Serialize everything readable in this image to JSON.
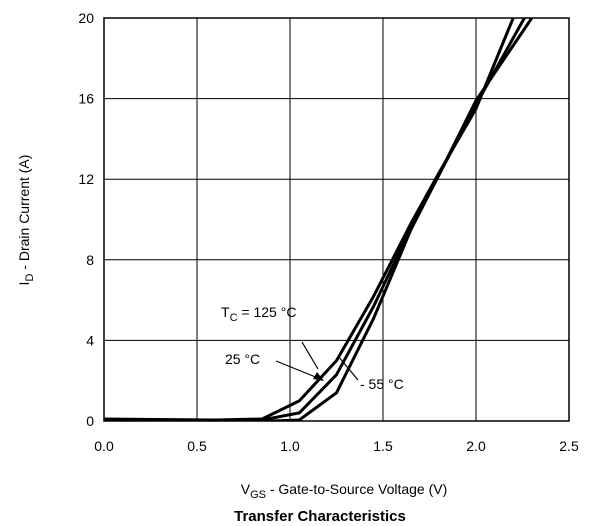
{
  "chart_data": {
    "type": "line",
    "title": "Transfer Characteristics",
    "xlabel": {
      "main": "V",
      "sub": "GS",
      "rest": " - Gate-to-Source Voltage (V)"
    },
    "ylabel": {
      "main": "I",
      "sub": "D",
      "rest": " - Drain Current (A)"
    },
    "xlim": [
      0.0,
      2.5
    ],
    "ylim": [
      0,
      20
    ],
    "xticks": [
      "0.0",
      "0.5",
      "1.0",
      "1.5",
      "2.0",
      "2.5"
    ],
    "yticks": [
      "0",
      "4",
      "8",
      "12",
      "16",
      "20"
    ],
    "grid": true,
    "annotations": [
      {
        "text_main": "T",
        "text_sub": "C",
        "text_rest": " = 125 °C"
      },
      {
        "text_main": "25 °C"
      },
      {
        "text_main": "- 55 °C"
      }
    ],
    "series": [
      {
        "x": [
          0,
          0.6,
          0.85,
          1.05,
          1.25,
          1.45,
          1.65,
          1.8,
          2.0,
          2.2
        ],
        "y": [
          0.1,
          0.05,
          0.1,
          1.0,
          3.0,
          6.2,
          9.8,
          12.3,
          15.5,
          20
        ]
      },
      {
        "x": [
          0,
          0.6,
          0.85,
          1.05,
          1.25,
          1.45,
          1.65,
          1.8,
          2.0,
          2.26
        ],
        "y": [
          0.05,
          0.0,
          0.05,
          0.4,
          2.3,
          5.7,
          9.6,
          12.2,
          15.7,
          20
        ]
      },
      {
        "x": [
          0,
          0.6,
          0.9,
          1.05,
          1.25,
          1.45,
          1.65,
          1.8,
          2.0,
          2.3
        ],
        "y": [
          0.0,
          0.0,
          0.0,
          0.05,
          1.4,
          5.1,
          9.5,
          12.2,
          15.9,
          20
        ]
      }
    ]
  }
}
